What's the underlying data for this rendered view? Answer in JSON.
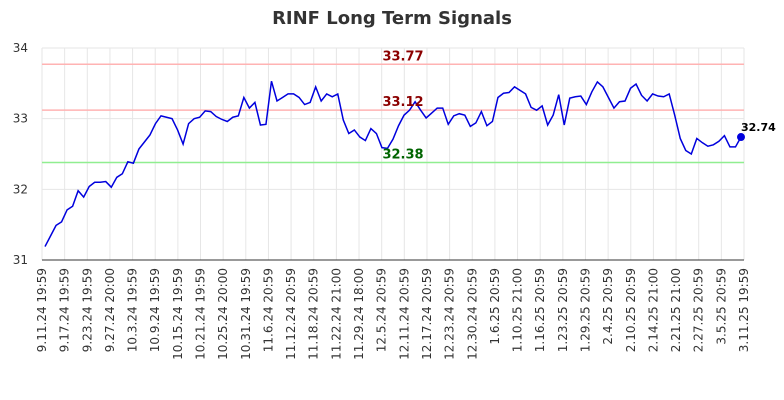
{
  "chart_data": {
    "type": "line",
    "title": "RINF Long Term Signals",
    "xlabel": "",
    "ylabel": "",
    "ylim": [
      31,
      34
    ],
    "yticks": [
      31,
      32,
      33,
      34
    ],
    "grid": true,
    "x_tick_labels": [
      "9.11.24 19:59",
      "9.17.24 19:59",
      "9.23.24 19:59",
      "9.27.24 20:00",
      "10.3.24 19:59",
      "10.9.24 19:59",
      "10.15.24 19:59",
      "10.21.24 19:59",
      "10.25.24 20:00",
      "10.31.24 19:59",
      "11.6.24 20:59",
      "11.12.24 20:59",
      "11.18.24 20:59",
      "11.22.24 21:00",
      "11.29.24 18:00",
      "12.5.24 20:59",
      "12.11.24 20:59",
      "12.17.24 20:59",
      "12.23.24 20:59",
      "12.30.24 20:59",
      "1.6.25 20:59",
      "1.10.25 21:00",
      "1.16.25 20:59",
      "1.23.25 20:59",
      "1.29.25 20:59",
      "2.4.25 20:59",
      "2.10.25 20:59",
      "2.14.25 21:00",
      "2.21.25 21:00",
      "2.27.25 20:59",
      "3.5.25 20:59",
      "3.11.25 19:59"
    ],
    "series": [
      {
        "color": "#0000dd",
        "values": [
          31.19,
          31.34,
          31.49,
          31.54,
          31.71,
          31.76,
          31.98,
          31.89,
          32.04,
          32.1,
          32.1,
          32.11,
          32.03,
          32.17,
          32.22,
          32.39,
          32.37,
          32.57,
          32.67,
          32.77,
          32.93,
          33.04,
          33.02,
          33.0,
          32.84,
          32.64,
          32.93,
          33.0,
          33.02,
          33.11,
          33.1,
          33.03,
          32.99,
          32.96,
          33.02,
          33.04,
          33.3,
          33.15,
          33.23,
          32.91,
          32.92,
          33.53,
          33.25,
          33.3,
          33.35,
          33.35,
          33.3,
          33.2,
          33.23,
          33.45,
          33.25,
          33.35,
          33.31,
          33.35,
          32.98,
          32.79,
          32.84,
          32.74,
          32.69,
          32.86,
          32.79,
          32.59,
          32.58,
          32.71,
          32.9,
          33.05,
          33.12,
          33.24,
          33.12,
          33.01,
          33.08,
          33.15,
          33.15,
          32.92,
          33.04,
          33.07,
          33.05,
          32.89,
          32.94,
          33.1,
          32.9,
          32.96,
          33.3,
          33.36,
          33.37,
          33.45,
          33.4,
          33.35,
          33.16,
          33.12,
          33.18,
          32.91,
          33.05,
          33.34,
          32.91,
          33.29,
          33.31,
          33.32,
          33.2,
          33.38,
          33.52,
          33.45,
          33.3,
          33.15,
          33.24,
          33.25,
          33.43,
          33.49,
          33.33,
          33.25,
          33.35,
          33.32,
          33.31,
          33.35,
          33.05,
          32.72,
          32.55,
          32.5,
          32.72,
          32.66,
          32.61,
          32.63,
          32.68,
          32.76,
          32.6,
          32.6,
          32.74
        ]
      }
    ],
    "reference_lines": [
      {
        "value": 33.77,
        "label": "33.77",
        "line_color": "#ffb3b3",
        "label_color": "#8b0000"
      },
      {
        "value": 33.12,
        "label": "33.12",
        "line_color": "#ffb3b3",
        "label_color": "#8b0000"
      },
      {
        "value": 32.38,
        "label": "32.38",
        "line_color": "#90ee90",
        "label_color": "#006400"
      }
    ],
    "last_point": {
      "value": 32.74,
      "label": "32.74",
      "color": "#0000dd"
    }
  }
}
